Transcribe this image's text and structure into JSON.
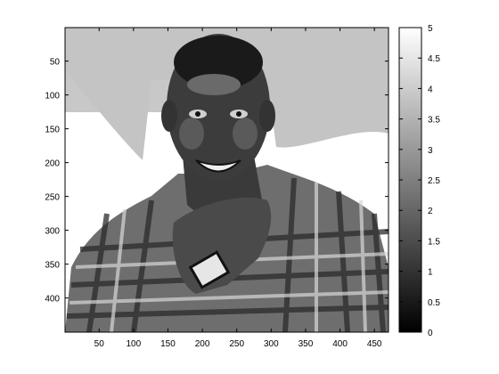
{
  "chart_data": {
    "type": "heatmap",
    "title": "",
    "xlabel": "",
    "ylabel": "",
    "colormap": "gray",
    "image_columns": 470,
    "image_rows": 450,
    "xlim": [
      0.5,
      470.5
    ],
    "ylim": [
      0.5,
      450.5
    ],
    "y_direction": "reverse",
    "clim": [
      0,
      5
    ],
    "levels": [
      0,
      1,
      2,
      3,
      4,
      5
    ],
    "x_ticks": [
      50,
      100,
      150,
      200,
      250,
      300,
      350,
      400,
      450
    ],
    "x_tick_labels": [
      "50",
      "100",
      "150",
      "200",
      "250",
      "300",
      "350",
      "400",
      "450"
    ],
    "y_ticks": [
      50,
      100,
      150,
      200,
      250,
      300,
      350,
      400
    ],
    "y_tick_labels": [
      "50",
      "100",
      "150",
      "200",
      "250",
      "300",
      "350",
      "400"
    ],
    "colorbar": {
      "ticks": [
        0,
        0.5,
        1,
        1.5,
        2,
        2.5,
        3,
        3.5,
        4,
        4.5,
        5
      ],
      "tick_labels": [
        "0",
        "0.5",
        "1",
        "1.5",
        "2",
        "2.5",
        "3",
        "3.5",
        "4",
        "4.5",
        "5"
      ],
      "placement": "right"
    },
    "grid": false
  }
}
